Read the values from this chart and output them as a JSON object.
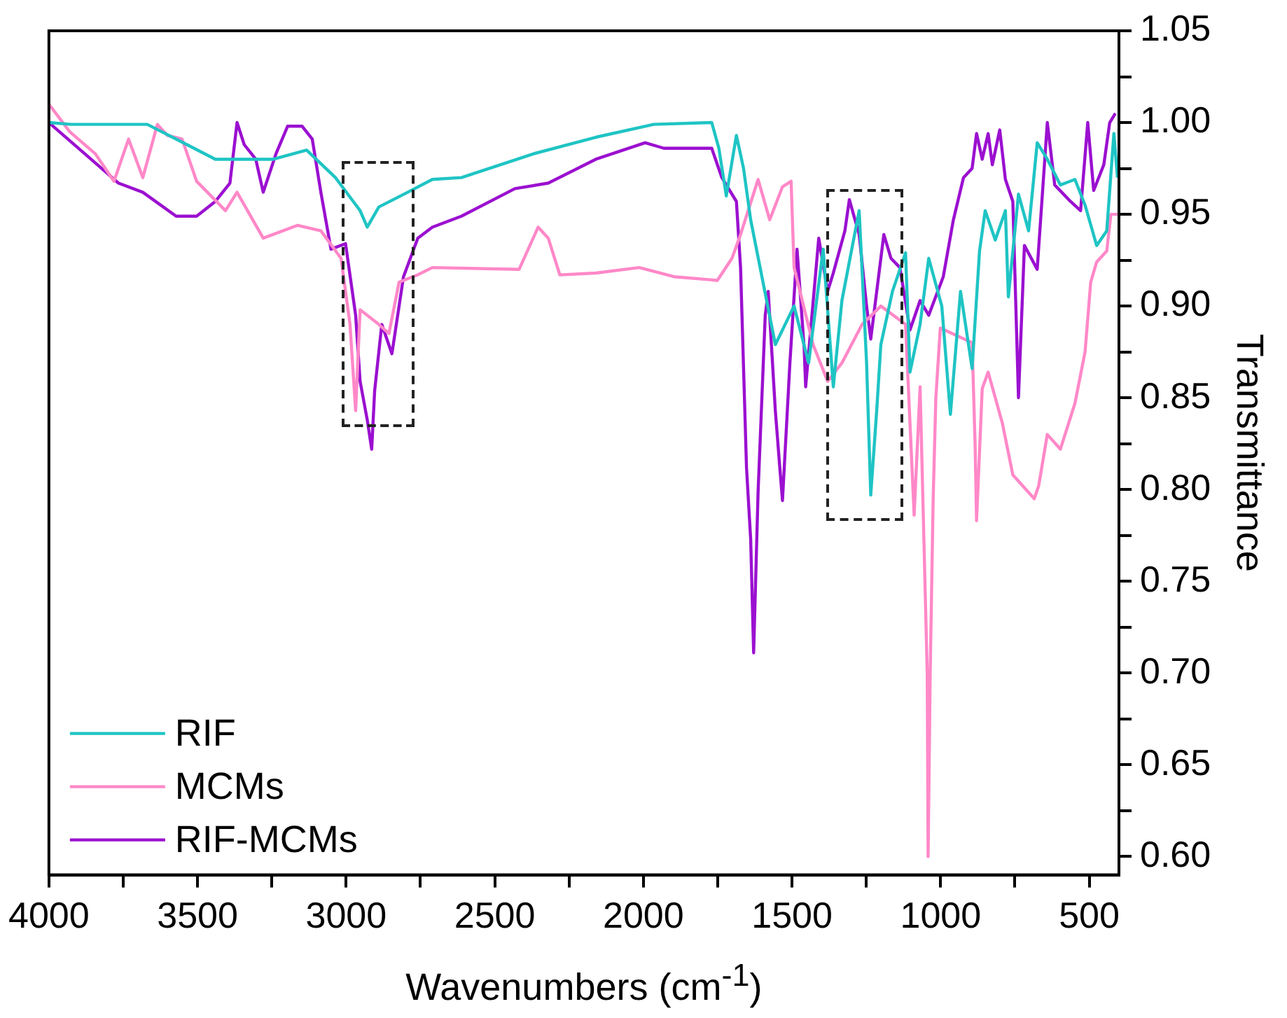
{
  "chart_data": {
    "type": "line",
    "xlabel": "Wavenumbers (cm$^{-1}$)",
    "ylabel": "Transmittance",
    "xlim": [
      4000,
      400
    ],
    "xticks": [
      4000,
      {
        "value": 3750,
        "label": null
      },
      3500,
      {
        "value": 3250,
        "label": null
      },
      3000,
      {
        "value": 2750,
        "label": null
      },
      2500,
      {
        "value": 2250,
        "label": null
      },
      2000,
      {
        "value": 1750,
        "label": null
      },
      1500,
      {
        "value": 1250,
        "label": null
      },
      1000,
      {
        "value": 750,
        "label": null
      },
      500
    ],
    "ylim": [
      0.59,
      1.05
    ],
    "yticks": [
      {
        "value": 0.6,
        "label": "0.60"
      },
      {
        "value": 0.625,
        "label": null
      },
      {
        "value": 0.65,
        "label": "0.65"
      },
      {
        "value": 0.675,
        "label": null
      },
      {
        "value": 0.7,
        "label": "0.70"
      },
      {
        "value": 0.725,
        "label": null
      },
      {
        "value": 0.75,
        "label": "0.75"
      },
      {
        "value": 0.775,
        "label": null
      },
      {
        "value": 0.8,
        "label": "0.80"
      },
      {
        "value": 0.825,
        "label": null
      },
      {
        "value": 0.85,
        "label": "0.85"
      },
      {
        "value": 0.875,
        "label": null
      },
      {
        "value": 0.9,
        "label": "0.90"
      },
      {
        "value": 0.925,
        "label": null
      },
      {
        "value": 0.95,
        "label": "0.95"
      },
      {
        "value": 0.975,
        "label": null
      },
      {
        "value": 1.0,
        "label": "1.00"
      },
      {
        "value": 1.025,
        "label": null
      },
      {
        "value": 1.05,
        "label": "1.05"
      }
    ],
    "grid": false,
    "legend": "bottom left",
    "marker": "none",
    "line_style": "solid",
    "series": [
      {
        "name": "RIF",
        "color": "#1fc4c4",
        "x": [
          4000,
          3927,
          3669,
          3560,
          3440,
          3245,
          3133,
          3036,
          2953,
          2929,
          2890,
          2793,
          2710,
          2612,
          2369,
          2160,
          1965,
          1770,
          1746,
          1721,
          1687,
          1663,
          1639,
          1556,
          1493,
          1444,
          1395,
          1361,
          1332,
          1274,
          1249,
          1235,
          1215,
          1201,
          1162,
          1118,
          1103,
          1069,
          1040,
          996,
          967,
          933,
          894,
          869,
          850,
          816,
          782,
          772,
          738,
          704,
          675,
          641,
          597,
          548,
          514,
          475,
          441,
          417,
          405
        ],
        "values": [
          1.0,
          0.999,
          0.999,
          0.99,
          0.98,
          0.98,
          0.985,
          0.97,
          0.952,
          0.943,
          0.954,
          0.962,
          0.969,
          0.97,
          0.983,
          0.992,
          0.999,
          1.0,
          0.986,
          0.96,
          0.993,
          0.975,
          0.947,
          0.879,
          0.9,
          0.869,
          0.931,
          0.856,
          0.903,
          0.952,
          0.869,
          0.797,
          0.843,
          0.879,
          0.908,
          0.929,
          0.864,
          0.89,
          0.926,
          0.9,
          0.841,
          0.908,
          0.866,
          0.93,
          0.952,
          0.936,
          0.952,
          0.905,
          0.961,
          0.941,
          0.989,
          0.98,
          0.966,
          0.969,
          0.955,
          0.933,
          0.941,
          0.994,
          0.97
        ]
      },
      {
        "name": "MCMs",
        "color": "#ff88c8",
        "x": [
          4000,
          3930,
          3844,
          3781,
          3732,
          3684,
          3635,
          3601,
          3552,
          3503,
          3406,
          3367,
          3279,
          3163,
          3085,
          3017,
          2987,
          2968,
          2953,
          2890,
          2856,
          2822,
          2759,
          2710,
          2418,
          2354,
          2320,
          2281,
          2160,
          2014,
          1897,
          1751,
          1702,
          1673,
          1614,
          1575,
          1532,
          1503,
          1493,
          1429,
          1380,
          1332,
          1264,
          1201,
          1118,
          1089,
          1069,
          1045,
          1042,
          1035,
          1025,
          1016,
          1001,
          894,
          884,
          879,
          860,
          840,
          792,
          757,
          685,
          670,
          641,
          597,
          548,
          514,
          495,
          475,
          441,
          427,
          405
        ],
        "values": [
          1.01,
          0.995,
          0.983,
          0.968,
          0.991,
          0.97,
          0.999,
          0.993,
          0.991,
          0.968,
          0.952,
          0.962,
          0.937,
          0.944,
          0.941,
          0.926,
          0.89,
          0.843,
          0.898,
          0.89,
          0.885,
          0.913,
          0.917,
          0.921,
          0.92,
          0.943,
          0.937,
          0.917,
          0.918,
          0.921,
          0.916,
          0.914,
          0.926,
          0.939,
          0.969,
          0.947,
          0.965,
          0.968,
          0.921,
          0.879,
          0.859,
          0.869,
          0.89,
          0.9,
          0.89,
          0.786,
          0.856,
          0.7,
          0.6,
          0.7,
          0.795,
          0.85,
          0.888,
          0.88,
          0.825,
          0.783,
          0.855,
          0.864,
          0.836,
          0.808,
          0.795,
          0.802,
          0.83,
          0.822,
          0.847,
          0.875,
          0.913,
          0.924,
          0.93,
          0.95,
          0.95
        ]
      },
      {
        "name": "RIF-MCMs",
        "color": "#9b10d0",
        "x": [
          4000,
          3844,
          3766,
          3684,
          3572,
          3503,
          3440,
          3391,
          3367,
          3343,
          3304,
          3279,
          3236,
          3197,
          3148,
          3114,
          3085,
          3051,
          3002,
          2968,
          2953,
          2929,
          2914,
          2904,
          2880,
          2846,
          2807,
          2759,
          2710,
          2612,
          2432,
          2320,
          2160,
          1994,
          1931,
          1770,
          1736,
          1687,
          1673,
          1653,
          1639,
          1629,
          1614,
          1590,
          1580,
          1556,
          1541,
          1532,
          1507,
          1483,
          1459,
          1454,
          1410,
          1380,
          1361,
          1322,
          1307,
          1274,
          1249,
          1235,
          1191,
          1167,
          1137,
          1103,
          1069,
          1040,
          991,
          957,
          923,
          894,
          879,
          860,
          840,
          826,
          801,
          782,
          757,
          738,
          718,
          675,
          641,
          616,
          563,
          529,
          505,
          485,
          451,
          431,
          412
        ],
        "values": [
          1.0,
          0.978,
          0.967,
          0.962,
          0.949,
          0.949,
          0.957,
          0.967,
          1.0,
          0.988,
          0.98,
          0.962,
          0.983,
          0.998,
          0.998,
          0.991,
          0.962,
          0.931,
          0.934,
          0.895,
          0.859,
          0.838,
          0.822,
          0.854,
          0.89,
          0.874,
          0.916,
          0.937,
          0.943,
          0.949,
          0.964,
          0.967,
          0.98,
          0.989,
          0.986,
          0.986,
          0.97,
          0.957,
          0.921,
          0.812,
          0.773,
          0.711,
          0.799,
          0.895,
          0.908,
          0.843,
          0.812,
          0.794,
          0.869,
          0.931,
          0.877,
          0.856,
          0.937,
          0.908,
          0.918,
          0.941,
          0.958,
          0.939,
          0.9,
          0.882,
          0.939,
          0.926,
          0.921,
          0.887,
          0.903,
          0.895,
          0.916,
          0.947,
          0.97,
          0.975,
          0.994,
          0.98,
          0.994,
          0.977,
          0.996,
          0.969,
          0.957,
          0.85,
          0.933,
          0.92,
          1.0,
          0.966,
          0.957,
          0.952,
          1.0,
          0.963,
          0.977,
          1.0,
          1.005
        ]
      }
    ]
  }
}
